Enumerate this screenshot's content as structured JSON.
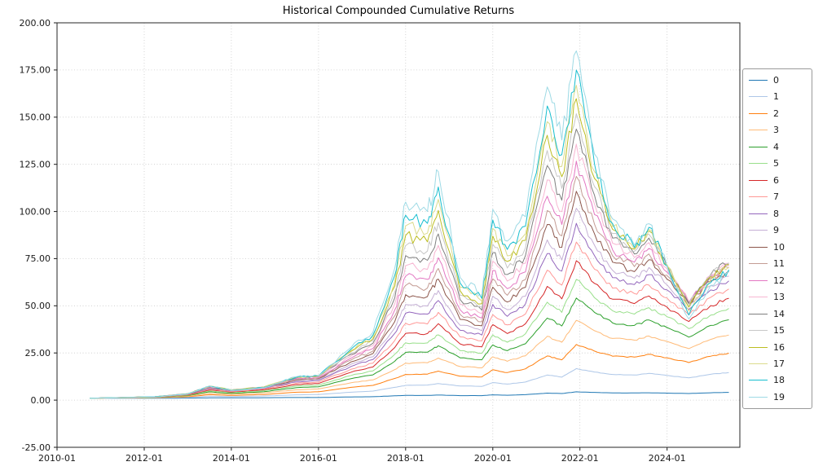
{
  "chart_data": {
    "type": "line",
    "title": "Historical Compounded Cumulative Returns",
    "xlabel": "",
    "ylabel": "",
    "grid": true,
    "legend_position": "outside-right",
    "ylim": [
      -25,
      200
    ],
    "y_ticks": [
      {
        "v": -25,
        "label": "-25.00"
      },
      {
        "v": 0,
        "label": "0.00"
      },
      {
        "v": 25,
        "label": "25.00"
      },
      {
        "v": 50,
        "label": "50.00"
      },
      {
        "v": 75,
        "label": "75.00"
      },
      {
        "v": 100,
        "label": "100.00"
      },
      {
        "v": 125,
        "label": "125.00"
      },
      {
        "v": 150,
        "label": "150.00"
      },
      {
        "v": 175,
        "label": "175.00"
      },
      {
        "v": 200,
        "label": "200.00"
      }
    ],
    "x_ticks": [
      {
        "year": 2010,
        "label": "2010-01"
      },
      {
        "year": 2012,
        "label": "2012-01"
      },
      {
        "year": 2014,
        "label": "2014-01"
      },
      {
        "year": 2016,
        "label": "2016-01"
      },
      {
        "year": 2018,
        "label": "2018-01"
      },
      {
        "year": 2020,
        "label": "2020-01"
      },
      {
        "year": 2022,
        "label": "2022-01"
      },
      {
        "year": 2024,
        "label": "2024-01"
      }
    ],
    "x": [
      "2010-10",
      "2011-07",
      "2012-04",
      "2013-01",
      "2013-07",
      "2014-01",
      "2014-10",
      "2015-07",
      "2016-01",
      "2016-10",
      "2017-04",
      "2017-10",
      "2018-01",
      "2018-07",
      "2018-10",
      "2019-04",
      "2019-10",
      "2020-01",
      "2020-05",
      "2020-10",
      "2021-04",
      "2021-08",
      "2021-12",
      "2022-05",
      "2022-10",
      "2023-04",
      "2023-08",
      "2024-01",
      "2024-07",
      "2025-01",
      "2025-06"
    ],
    "series": [
      {
        "name": "0",
        "color": "#1f77b4",
        "values": [
          1.0,
          1.0,
          1.0,
          1.1,
          1.2,
          1.2,
          1.3,
          1.4,
          1.4,
          1.7,
          1.8,
          2.3,
          2.5,
          2.5,
          2.7,
          2.4,
          2.4,
          2.8,
          2.6,
          2.9,
          3.7,
          3.5,
          4.4,
          4.1,
          3.8,
          3.8,
          3.9,
          3.7,
          3.5,
          3.9,
          4.1
        ]
      },
      {
        "name": "1",
        "color": "#aec7e8",
        "values": [
          1.0,
          1.1,
          1.2,
          1.5,
          2.1,
          1.9,
          2.2,
          2.8,
          3.0,
          4.2,
          4.8,
          6.8,
          7.8,
          8.0,
          8.8,
          7.5,
          7.3,
          9.3,
          8.5,
          9.6,
          13.3,
          12.2,
          16.7,
          14.9,
          13.6,
          13.3,
          14.2,
          13.1,
          11.8,
          13.7,
          14.6
        ]
      },
      {
        "name": "2",
        "color": "#ff7f0e",
        "values": [
          1.0,
          1.2,
          1.3,
          1.8,
          2.9,
          2.5,
          3.0,
          4.2,
          4.4,
          6.8,
          7.8,
          11.5,
          13.6,
          13.8,
          15.4,
          12.7,
          12.3,
          16.1,
          14.6,
          16.6,
          23.4,
          21.4,
          29.5,
          26.0,
          23.3,
          22.8,
          24.3,
          22.4,
          19.9,
          23.3,
          24.9
        ]
      },
      {
        "name": "3",
        "color": "#ffbb78",
        "values": [
          1.0,
          1.2,
          1.4,
          2.1,
          3.7,
          3.1,
          3.9,
          5.5,
          5.9,
          9.2,
          10.7,
          16.2,
          19.6,
          19.8,
          22.3,
          17.8,
          17.1,
          23.0,
          20.6,
          23.5,
          33.8,
          30.7,
          42.3,
          36.8,
          32.7,
          31.8,
          34.0,
          31.1,
          27.3,
          32.2,
          34.5
        ]
      },
      {
        "name": "4",
        "color": "#2ca02c",
        "values": [
          1.0,
          1.3,
          1.5,
          2.4,
          4.4,
          3.6,
          4.5,
          6.6,
          7.1,
          11.4,
          13.4,
          20.6,
          25.3,
          25.4,
          28.8,
          22.4,
          21.4,
          29.3,
          26.2,
          29.9,
          43.5,
          39.3,
          54.1,
          46.5,
          40.9,
          39.6,
          42.5,
          38.5,
          33.4,
          39.6,
          42.6
        ]
      },
      {
        "name": "5",
        "color": "#98df8a",
        "values": [
          1.0,
          1.3,
          1.5,
          2.6,
          4.9,
          4.0,
          5.0,
          7.5,
          8.0,
          13.1,
          15.5,
          24.3,
          30.3,
          30.3,
          34.6,
          26.2,
          24.9,
          34.6,
          30.7,
          35.2,
          51.9,
          46.5,
          64.0,
          54.3,
          47.4,
          45.6,
          49.0,
          44.2,
          37.9,
          45.1,
          48.6
        ]
      },
      {
        "name": "6",
        "color": "#d62728",
        "values": [
          1.0,
          1.4,
          1.6,
          2.8,
          5.4,
          4.3,
          5.5,
          8.3,
          8.8,
          14.8,
          17.6,
          27.9,
          35.4,
          35.3,
          40.5,
          29.8,
          28.2,
          40.0,
          35.3,
          40.5,
          60.3,
          53.7,
          73.9,
          61.9,
          53.5,
          51.2,
          55.2,
          49.3,
          41.7,
          50.1,
          54.0
        ]
      },
      {
        "name": "7",
        "color": "#ff9896",
        "values": [
          1.0,
          1.4,
          1.7,
          3.0,
          5.8,
          4.6,
          5.9,
          9.0,
          9.6,
          16.4,
          19.6,
          31.6,
          40.7,
          40.4,
          46.5,
          33.5,
          31.4,
          45.3,
          39.9,
          45.7,
          68.9,
          61.0,
          83.8,
          69.4,
          59.4,
          56.5,
          61.0,
          54.1,
          45.2,
          54.5,
          58.9
        ]
      },
      {
        "name": "8",
        "color": "#9467bd",
        "values": [
          1.0,
          1.4,
          1.7,
          3.1,
          6.2,
          4.9,
          6.3,
          9.7,
          10.4,
          17.9,
          21.5,
          35.4,
          46.1,
          45.6,
          52.8,
          37.0,
          34.5,
          50.7,
          44.4,
          51.0,
          77.7,
          68.4,
          93.7,
          76.6,
          64.9,
          61.3,
          66.5,
          58.4,
          48.1,
          58.4,
          63.2
        ]
      },
      {
        "name": "9",
        "color": "#c5b0d5",
        "values": [
          1.0,
          1.4,
          1.7,
          3.2,
          6.4,
          5.0,
          6.5,
          10.2,
          10.9,
          19.1,
          23.0,
          38.3,
          50.7,
          49.9,
          58.1,
          39.7,
          36.8,
          55.1,
          48.0,
          55.1,
          84.9,
          74.3,
          101.7,
          82.1,
          68.8,
          64.6,
          70.3,
          61.1,
          49.6,
          60.7,
          65.7
        ]
      },
      {
        "name": "10",
        "color": "#8c564b",
        "values": [
          1.0,
          1.4,
          1.8,
          3.3,
          6.7,
          5.2,
          6.7,
          10.7,
          11.4,
          20.3,
          24.7,
          41.7,
          55.9,
          54.9,
          64.2,
          42.8,
          39.4,
          59.9,
          52.0,
          59.8,
          93.1,
          81.0,
          110.7,
          88.2,
          73.1,
          68.1,
          74.4,
          64.1,
          51.1,
          63.1,
          68.4
        ]
      },
      {
        "name": "11",
        "color": "#c49c94",
        "values": [
          1.0,
          1.4,
          1.8,
          3.3,
          6.9,
          5.3,
          6.8,
          11.0,
          11.7,
          21.3,
          26.0,
          44.7,
          60.8,
          59.4,
          69.8,
          45.4,
          41.5,
          64.3,
          55.6,
          63.9,
          100.5,
          87.1,
          118.6,
          93.3,
          76.5,
          70.8,
          77.5,
          66.1,
          51.7,
          64.4,
          70.0
        ]
      },
      {
        "name": "12",
        "color": "#e377c2",
        "values": [
          1.0,
          1.4,
          1.8,
          3.4,
          7.1,
          5.3,
          6.9,
          11.4,
          12.1,
          22.3,
          27.4,
          47.8,
          65.7,
          64.0,
          75.5,
          47.9,
          43.5,
          68.7,
          59.1,
          68.0,
          108.1,
          93.1,
          126.7,
          98.4,
          79.7,
          73.1,
          80.4,
          67.8,
          52.0,
          65.4,
          71.3
        ]
      },
      {
        "name": "13",
        "color": "#f7b6d2",
        "values": [
          1.0,
          1.4,
          1.8,
          3.4,
          7.3,
          5.4,
          7.0,
          11.7,
          12.4,
          23.4,
          28.9,
          51.2,
          71.3,
          69.3,
          82.0,
          50.8,
          45.8,
          73.7,
          63.1,
          72.6,
          116.7,
          99.9,
          135.7,
          103.9,
          83.2,
          75.6,
          83.5,
          69.7,
          52.2,
          66.3,
          72.5
        ]
      },
      {
        "name": "14",
        "color": "#7f7f7f",
        "values": [
          1.0,
          1.4,
          1.8,
          3.4,
          7.4,
          5.4,
          7.0,
          11.9,
          12.6,
          24.3,
          30.2,
          54.2,
          76.6,
          74.1,
          88.1,
          53.3,
          47.7,
          78.1,
          66.6,
          76.6,
          124.4,
          106.0,
          143.7,
          108.6,
          85.9,
          77.5,
          85.9,
          70.7,
          51.6,
          66.5,
          72.7
        ]
      },
      {
        "name": "15",
        "color": "#c7c7c7",
        "values": [
          1.0,
          1.4,
          1.8,
          3.4,
          7.4,
          5.4,
          7.0,
          12.1,
          12.8,
          25.1,
          31.4,
          57.3,
          81.9,
          79.0,
          94.2,
          55.6,
          49.4,
          82.6,
          70.0,
          80.7,
          132.3,
          112.2,
          151.8,
          113.2,
          88.3,
          78.9,
          87.9,
          71.4,
          50.6,
          66.1,
          72.6
        ]
      },
      {
        "name": "16",
        "color": "#bcbd22",
        "values": [
          1.0,
          1.4,
          1.8,
          3.4,
          7.5,
          5.4,
          6.9,
          12.3,
          12.9,
          25.9,
          32.5,
          60.4,
          87.3,
          83.9,
          100.6,
          58.0,
          51.1,
          87.0,
          73.5,
          84.7,
          140.4,
          118.4,
          159.8,
          117.5,
          90.5,
          80.0,
          89.6,
          71.7,
          49.3,
          65.4,
          72.0
        ]
      },
      {
        "name": "17",
        "color": "#dbdb8d",
        "values": [
          1.0,
          1.4,
          1.8,
          3.3,
          7.5,
          5.3,
          6.8,
          12.3,
          12.9,
          26.4,
          33.5,
          63.1,
          92.4,
          88.5,
          106.4,
          59.9,
          52.4,
          91.0,
          76.5,
          88.2,
          147.6,
          123.9,
          166.9,
          121.1,
          91.9,
          80.3,
          90.5,
          71.2,
          47.2,
          63.9,
          70.6
        ]
      },
      {
        "name": "18",
        "color": "#17becf",
        "values": [
          1.0,
          1.4,
          1.8,
          3.3,
          7.4,
          5.2,
          6.7,
          12.3,
          12.9,
          27.1,
          34.5,
          66.2,
          98.0,
          93.7,
          113.0,
          62.1,
          53.9,
          95.5,
          79.9,
          92.2,
          155.9,
          130.1,
          175.0,
          125.2,
          93.6,
          80.9,
          91.6,
          70.9,
          45.1,
          62.3,
          69.1
        ]
      },
      {
        "name": "19",
        "color": "#9edae5",
        "values": [
          1.0,
          1.4,
          1.7,
          3.2,
          7.5,
          5.1,
          6.6,
          12.5,
          13.0,
          28.0,
          36.0,
          70.0,
          105.0,
          100.0,
          121.1,
          65.0,
          55.9,
          101.1,
          84.3,
          97.2,
          166.0,
          137.9,
          185.1,
          130.5,
          96.1,
          82.1,
          93.5,
          70.9,
          43.0,
          60.9,
          68.0
        ]
      }
    ]
  }
}
